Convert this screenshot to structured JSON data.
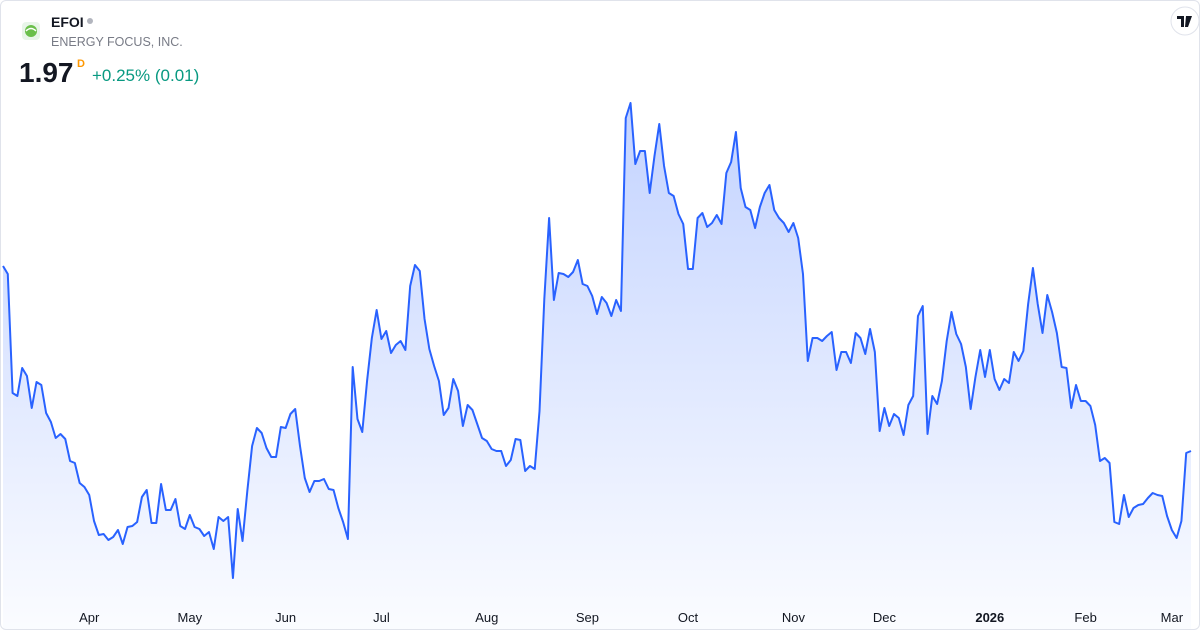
{
  "chart_data": {
    "type": "area",
    "title": "EFOI",
    "subtitle": "ENERGY FOCUS, INC.",
    "quote": {
      "price": 1.97,
      "flag": "D",
      "change": "+0.25% (0.01)"
    },
    "color": "#2962ff",
    "categories": [
      null,
      null,
      null,
      null,
      null,
      null,
      null,
      null,
      null,
      null,
      null,
      null,
      null,
      null,
      null,
      null,
      null,
      null,
      "Apr",
      null,
      null,
      null,
      null,
      null,
      null,
      null,
      null,
      null,
      null,
      null,
      null,
      null,
      null,
      null,
      null,
      null,
      null,
      null,
      null,
      "May",
      null,
      null,
      null,
      null,
      null,
      null,
      null,
      null,
      null,
      null,
      null,
      null,
      null,
      null,
      null,
      null,
      null,
      null,
      null,
      "Jun",
      null,
      null,
      null,
      null,
      null,
      null,
      null,
      null,
      null,
      null,
      null,
      null,
      null,
      null,
      null,
      null,
      null,
      null,
      null,
      "Jul",
      null,
      null,
      null,
      null,
      null,
      null,
      null,
      null,
      null,
      null,
      null,
      null,
      null,
      null,
      null,
      null,
      null,
      null,
      null,
      null,
      null,
      "Aug",
      null,
      null,
      null,
      null,
      null,
      null,
      null,
      null,
      null,
      null,
      null,
      null,
      null,
      null,
      null,
      null,
      null,
      null,
      null,
      null,
      "Sep",
      null,
      null,
      null,
      null,
      null,
      null,
      null,
      null,
      null,
      null,
      null,
      null,
      null,
      null,
      null,
      null,
      null,
      null,
      null,
      null,
      "Oct",
      null,
      null,
      null,
      null,
      null,
      null,
      null,
      null,
      null,
      null,
      null,
      null,
      null,
      null,
      null,
      null,
      null,
      null,
      null,
      null,
      null,
      "Nov",
      null,
      null,
      null,
      null,
      null,
      null,
      null,
      null,
      null,
      null,
      null,
      null,
      null,
      null,
      null,
      null,
      null,
      null,
      "Dec",
      null,
      null,
      null,
      null,
      null,
      null,
      null,
      null,
      null,
      null,
      null,
      null,
      null,
      null,
      null,
      null,
      null,
      null,
      null,
      null,
      null,
      "2026",
      null,
      null,
      null,
      null,
      null,
      null,
      null,
      null,
      null,
      null,
      null,
      null,
      null,
      null,
      null,
      null,
      null,
      null,
      null,
      "Feb",
      null,
      null,
      null,
      null,
      null,
      null,
      null,
      null,
      null,
      null,
      null,
      null,
      null,
      null,
      null,
      null,
      null,
      "Mar",
      null,
      null,
      null,
      null
    ],
    "values": [
      2.895,
      2.855,
      2.26,
      2.245,
      2.385,
      2.345,
      2.185,
      2.315,
      2.3,
      2.16,
      2.115,
      2.035,
      2.055,
      2.03,
      1.92,
      1.91,
      1.81,
      1.79,
      1.75,
      1.62,
      1.55,
      1.555,
      1.525,
      1.54,
      1.575,
      1.505,
      1.59,
      1.595,
      1.615,
      1.74,
      1.775,
      1.61,
      1.61,
      1.805,
      1.675,
      1.675,
      1.73,
      1.595,
      1.58,
      1.65,
      1.59,
      1.58,
      1.545,
      1.565,
      1.48,
      1.64,
      1.62,
      1.64,
      1.335,
      1.68,
      1.52,
      1.77,
      1.995,
      2.085,
      2.06,
      1.985,
      1.94,
      1.94,
      2.09,
      2.085,
      2.155,
      2.18,
      1.995,
      1.835,
      1.765,
      1.82,
      1.82,
      1.83,
      1.78,
      1.775,
      1.685,
      1.615,
      1.53,
      2.39,
      2.13,
      2.065,
      2.32,
      2.535,
      2.675,
      2.53,
      2.57,
      2.46,
      2.5,
      2.52,
      2.475,
      2.795,
      2.9,
      2.87,
      2.63,
      2.48,
      2.395,
      2.32,
      2.15,
      2.185,
      2.33,
      2.27,
      2.095,
      2.2,
      2.175,
      2.105,
      2.035,
      2.02,
      1.98,
      1.97,
      1.97,
      1.895,
      1.925,
      2.03,
      2.025,
      1.87,
      1.895,
      1.88,
      2.17,
      2.73,
      3.135,
      2.725,
      2.86,
      2.855,
      2.84,
      2.865,
      2.925,
      2.805,
      2.795,
      2.745,
      2.655,
      2.74,
      2.71,
      2.645,
      2.725,
      2.67,
      3.635,
      3.71,
      3.405,
      3.47,
      3.47,
      3.26,
      3.445,
      3.605,
      3.395,
      3.26,
      3.245,
      3.155,
      3.105,
      2.88,
      2.88,
      3.135,
      3.16,
      3.09,
      3.11,
      3.15,
      3.105,
      3.36,
      3.415,
      3.565,
      3.285,
      3.19,
      3.175,
      3.085,
      3.19,
      3.26,
      3.3,
      3.175,
      3.135,
      3.11,
      3.065,
      3.11,
      3.035,
      2.855,
      2.42,
      2.535,
      2.535,
      2.52,
      2.545,
      2.565,
      2.375,
      2.465,
      2.465,
      2.41,
      2.56,
      2.535,
      2.455,
      2.58,
      2.465,
      2.07,
      2.185,
      2.095,
      2.155,
      2.135,
      2.05,
      2.2,
      2.245,
      2.645,
      2.695,
      2.055,
      2.245,
      2.205,
      2.32,
      2.52,
      2.665,
      2.555,
      2.505,
      2.39,
      2.18,
      2.34,
      2.475,
      2.34,
      2.475,
      2.33,
      2.275,
      2.33,
      2.31,
      2.465,
      2.42,
      2.47,
      2.705,
      2.885,
      2.705,
      2.56,
      2.75,
      2.665,
      2.56,
      2.39,
      2.385,
      2.185,
      2.3,
      2.22,
      2.22,
      2.195,
      2.1,
      1.92,
      1.935,
      1.91,
      1.615,
      1.605,
      1.75,
      1.64,
      1.685,
      1.7,
      1.705,
      1.735,
      1.76,
      1.75,
      1.745,
      1.645,
      1.575,
      1.535,
      1.62,
      1.96,
      1.97
    ]
  }
}
